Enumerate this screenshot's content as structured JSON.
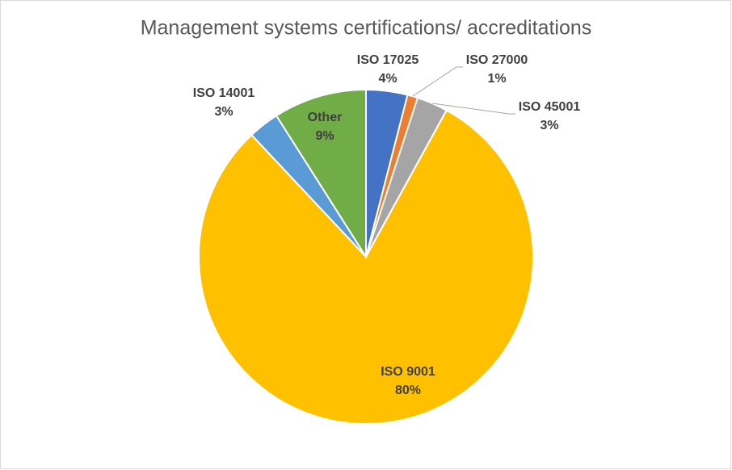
{
  "chart_data": {
    "type": "pie",
    "title": "Management systems certifications/ accreditations",
    "categories": [
      "ISO 17025",
      "ISO 27000",
      "ISO 45001",
      "ISO 9001",
      "ISO 14001",
      "Other"
    ],
    "values": [
      4,
      1,
      3,
      80,
      3,
      9
    ],
    "value_labels": [
      "4%",
      "1%",
      "3%",
      "80%",
      "3%",
      "9%"
    ],
    "colors": [
      "#4472c4",
      "#ed7d31",
      "#a5a5a5",
      "#ffc000",
      "#5b9bd5",
      "#70ad47"
    ]
  }
}
